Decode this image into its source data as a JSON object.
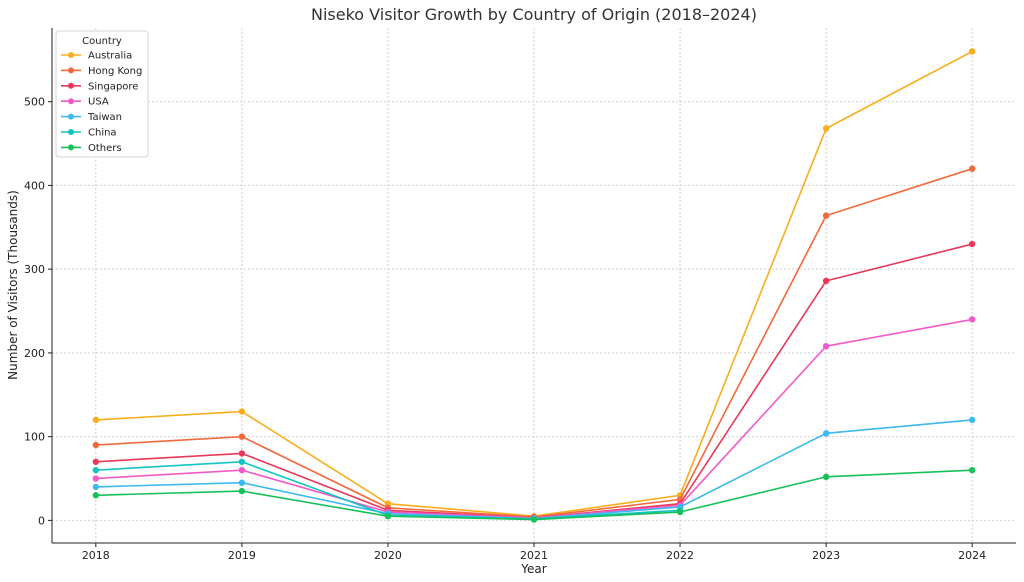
{
  "chart_data": {
    "type": "line",
    "title": "Niseko Visitor Growth by Country of Origin (2018–2024)",
    "xlabel": "Year",
    "ylabel": "Number of Visitors (Thousands)",
    "x": [
      2018,
      2019,
      2020,
      2021,
      2022,
      2023,
      2024
    ],
    "x_tick_labels": [
      "2018",
      "2019",
      "2020",
      "2021",
      "2022",
      "2023",
      "2024"
    ],
    "y_ticks": [
      0,
      100,
      200,
      300,
      400,
      500
    ],
    "y_tick_labels": [
      "0",
      "100",
      "200",
      "300",
      "400",
      "500"
    ],
    "xlim": [
      2017.7,
      2024.3
    ],
    "ylim": [
      -27,
      588
    ],
    "grid": true,
    "legend": {
      "title": "Country",
      "placement": "top-left"
    },
    "series": [
      {
        "name": "Australia",
        "color": "#f9ad1a",
        "values": [
          120,
          130,
          20,
          5,
          30,
          468,
          560
        ]
      },
      {
        "name": "Hong Kong",
        "color": "#f26a3b",
        "values": [
          90,
          100,
          15,
          4,
          25,
          364,
          420
        ]
      },
      {
        "name": "Singapore",
        "color": "#e8395a",
        "values": [
          70,
          80,
          12,
          3,
          20,
          286,
          330
        ]
      },
      {
        "name": "USA",
        "color": "#f25ac7",
        "values": [
          50,
          60,
          10,
          3,
          18,
          208,
          240
        ]
      },
      {
        "name": "Taiwan",
        "color": "#3db9ee",
        "values": [
          40,
          45,
          8,
          2,
          16,
          104,
          120
        ]
      },
      {
        "name": "China",
        "color": "#14c4c4",
        "values": [
          60,
          70,
          6,
          2,
          12,
          null,
          null
        ]
      },
      {
        "name": "Others",
        "color": "#16c15a",
        "values": [
          30,
          35,
          5,
          1,
          10,
          52,
          60
        ]
      }
    ]
  }
}
